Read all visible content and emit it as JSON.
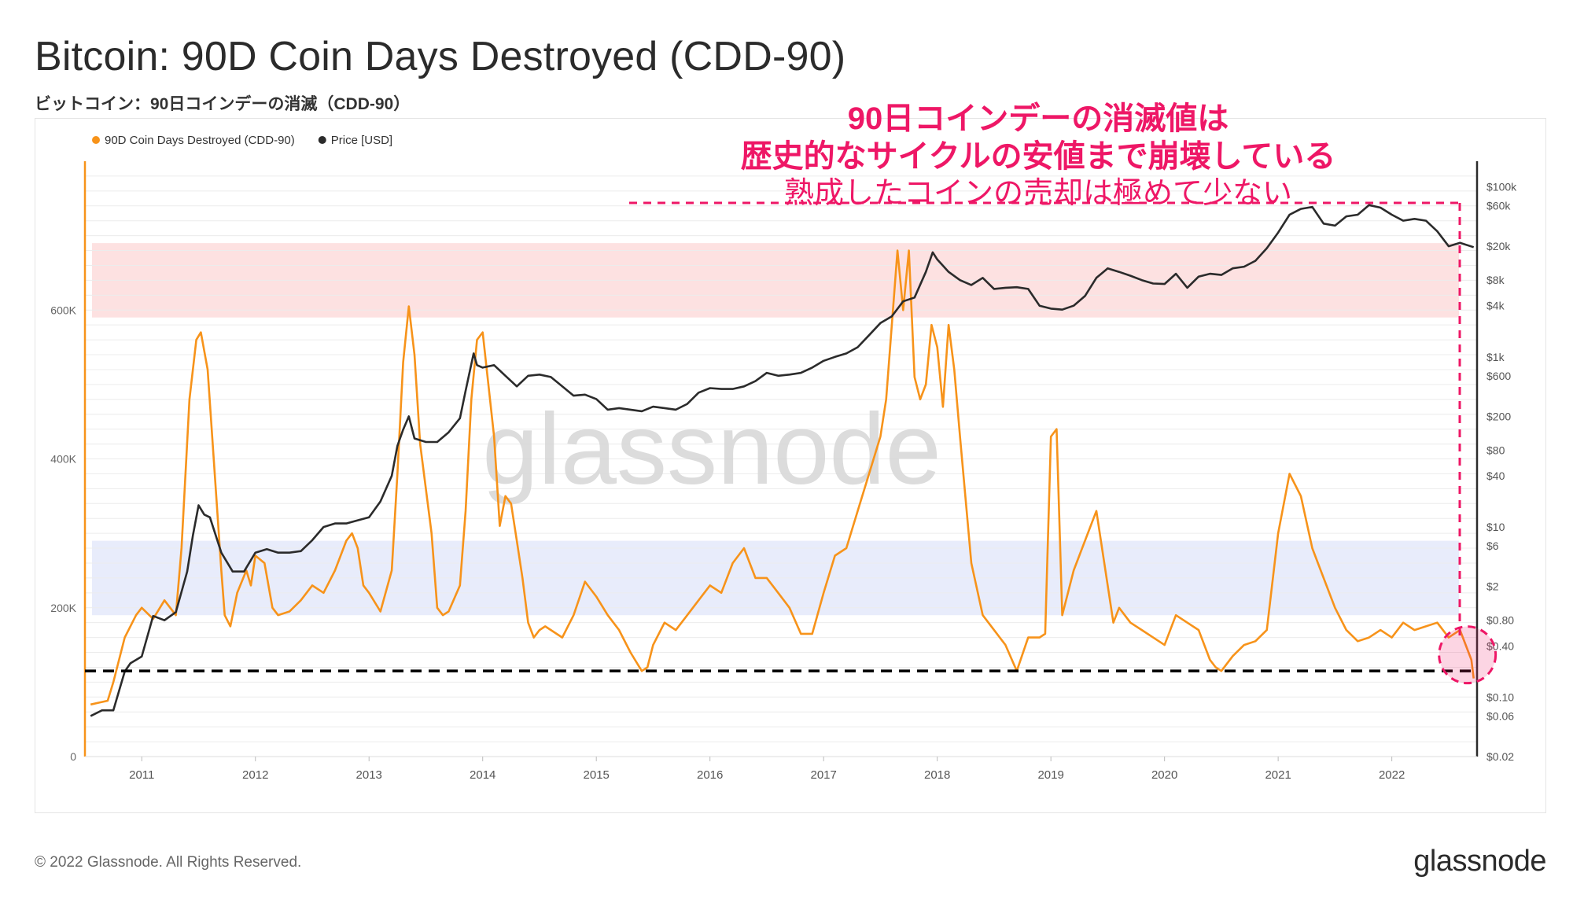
{
  "header": {
    "title": "Bitcoin: 90D Coin Days Destroyed (CDD-90)",
    "subtitle": "ビットコイン：90日コインデーの消滅（CDD-90）"
  },
  "annotation": {
    "line1": "90日コインデーの消滅値は",
    "line2": "歴史的なサイクルの安値まで崩壊している",
    "line3": "熟成したコインの売却は極めて少ない"
  },
  "watermark": "glassnode",
  "footer": {
    "copyright": "© 2022 Glassnode. All Rights Reserved.",
    "brand": "glassnode"
  },
  "chart_data": {
    "type": "line",
    "title": "Bitcoin: 90D Coin Days Destroyed (CDD-90)",
    "legend": [
      {
        "label": "90D Coin Days Destroyed (CDD-90)",
        "color": "#f7931a"
      },
      {
        "label": "Price [USD]",
        "color": "#2b2b2b"
      }
    ],
    "legend_position": "top-left",
    "x_ticks": [
      "2011",
      "2012",
      "2013",
      "2014",
      "2015",
      "2016",
      "2017",
      "2018",
      "2019",
      "2020",
      "2021",
      "2022"
    ],
    "x_range": [
      2010.5,
      2022.75
    ],
    "y_left": {
      "ticks": [
        "0",
        "200K",
        "400K",
        "600K"
      ],
      "range": [
        0,
        800000
      ]
    },
    "y_right": {
      "scale": "log",
      "ticks": [
        "$0.02",
        "$0.06",
        "$0.10",
        "$0.40",
        "$0.80",
        "$2",
        "$6",
        "$10",
        "$40",
        "$80",
        "$200",
        "$600",
        "$1k",
        "$4k",
        "$8k",
        "$20k",
        "$60k",
        "$100k"
      ],
      "range": [
        0.02,
        200000
      ]
    },
    "bands": [
      {
        "name": "high",
        "y_range": [
          590000,
          690000
        ],
        "color": "#fde1e1"
      },
      {
        "name": "low",
        "y_range": [
          190000,
          290000
        ],
        "color": "#e8ecfb"
      }
    ],
    "reference_line": {
      "name": "cycle-low",
      "value": 115000,
      "color": "#000000"
    },
    "series": [
      {
        "name": "90D Coin Days Destroyed (CDD-90)",
        "axis": "left",
        "color": "#f7931a",
        "x": [
          2010.55,
          2010.7,
          2010.75,
          2010.85,
          2010.95,
          2011.0,
          2011.1,
          2011.2,
          2011.3,
          2011.35,
          2011.42,
          2011.48,
          2011.52,
          2011.58,
          2011.62,
          2011.7,
          2011.73,
          2011.78,
          2011.84,
          2011.92,
          2011.96,
          2012.0,
          2012.08,
          2012.15,
          2012.2,
          2012.3,
          2012.4,
          2012.5,
          2012.6,
          2012.7,
          2012.8,
          2012.85,
          2012.9,
          2012.95,
          2013.0,
          2013.1,
          2013.2,
          2013.25,
          2013.3,
          2013.35,
          2013.4,
          2013.45,
          2013.55,
          2013.6,
          2013.65,
          2013.7,
          2013.8,
          2013.85,
          2013.9,
          2013.95,
          2014.0,
          2014.1,
          2014.15,
          2014.2,
          2014.25,
          2014.3,
          2014.35,
          2014.4,
          2014.45,
          2014.5,
          2014.55,
          2014.7,
          2014.8,
          2014.9,
          2015.0,
          2015.1,
          2015.2,
          2015.3,
          2015.4,
          2015.45,
          2015.5,
          2015.6,
          2015.7,
          2015.8,
          2015.9,
          2016.0,
          2016.1,
          2016.2,
          2016.3,
          2016.4,
          2016.5,
          2016.6,
          2016.7,
          2016.8,
          2016.9,
          2017.0,
          2017.1,
          2017.2,
          2017.3,
          2017.4,
          2017.5,
          2017.55,
          2017.6,
          2017.65,
          2017.7,
          2017.75,
          2017.8,
          2017.85,
          2017.9,
          2017.95,
          2018.0,
          2018.05,
          2018.1,
          2018.15,
          2018.2,
          2018.3,
          2018.4,
          2018.5,
          2018.6,
          2018.7,
          2018.8,
          2018.9,
          2018.95,
          2019.0,
          2019.05,
          2019.1,
          2019.2,
          2019.3,
          2019.4,
          2019.5,
          2019.55,
          2019.6,
          2019.7,
          2019.8,
          2019.9,
          2020.0,
          2020.1,
          2020.2,
          2020.3,
          2020.4,
          2020.45,
          2020.5,
          2020.6,
          2020.7,
          2020.8,
          2020.9,
          2021.0,
          2021.1,
          2021.2,
          2021.3,
          2021.35,
          2021.4,
          2021.5,
          2021.6,
          2021.7,
          2021.8,
          2021.9,
          2022.0,
          2022.1,
          2022.2,
          2022.3,
          2022.4,
          2022.5,
          2022.6,
          2022.65,
          2022.7,
          2022.72
        ],
        "y": [
          70000,
          75000,
          100000,
          160000,
          190000,
          200000,
          185000,
          210000,
          190000,
          280000,
          480000,
          560000,
          570000,
          520000,
          430000,
          250000,
          190000,
          175000,
          220000,
          250000,
          230000,
          270000,
          260000,
          200000,
          190000,
          195000,
          210000,
          230000,
          220000,
          250000,
          290000,
          300000,
          280000,
          230000,
          220000,
          195000,
          250000,
          380000,
          530000,
          605000,
          540000,
          420000,
          300000,
          200000,
          190000,
          195000,
          230000,
          330000,
          480000,
          560000,
          570000,
          430000,
          310000,
          350000,
          340000,
          290000,
          240000,
          180000,
          160000,
          170000,
          175000,
          160000,
          190000,
          235000,
          215000,
          190000,
          170000,
          140000,
          115000,
          120000,
          150000,
          180000,
          170000,
          190000,
          210000,
          230000,
          220000,
          260000,
          280000,
          240000,
          240000,
          220000,
          200000,
          165000,
          165000,
          220000,
          270000,
          280000,
          330000,
          380000,
          430000,
          480000,
          580000,
          680000,
          600000,
          680000,
          510000,
          480000,
          500000,
          580000,
          550000,
          470000,
          580000,
          520000,
          430000,
          260000,
          190000,
          170000,
          150000,
          115000,
          160000,
          160000,
          165000,
          430000,
          440000,
          190000,
          250000,
          290000,
          330000,
          230000,
          180000,
          200000,
          180000,
          170000,
          160000,
          150000,
          190000,
          180000,
          170000,
          130000,
          120000,
          115000,
          135000,
          150000,
          155000,
          170000,
          300000,
          380000,
          350000,
          280000,
          260000,
          240000,
          200000,
          170000,
          155000,
          160000,
          170000,
          160000,
          180000,
          170000,
          175000,
          180000,
          160000,
          170000,
          150000,
          130000,
          105000
        ]
      },
      {
        "name": "Price [USD]",
        "axis": "right",
        "color": "#2b2b2b",
        "x": [
          2010.55,
          2010.65,
          2010.75,
          2010.85,
          2010.9,
          2011.0,
          2011.1,
          2011.2,
          2011.3,
          2011.4,
          2011.45,
          2011.5,
          2011.55,
          2011.6,
          2011.7,
          2011.8,
          2011.9,
          2012.0,
          2012.1,
          2012.2,
          2012.3,
          2012.4,
          2012.5,
          2012.6,
          2012.7,
          2012.8,
          2012.9,
          2013.0,
          2013.1,
          2013.2,
          2013.25,
          2013.3,
          2013.35,
          2013.4,
          2013.5,
          2013.6,
          2013.7,
          2013.8,
          2013.85,
          2013.92,
          2013.95,
          2014.0,
          2014.1,
          2014.2,
          2014.3,
          2014.4,
          2014.5,
          2014.6,
          2014.7,
          2014.8,
          2014.9,
          2015.0,
          2015.1,
          2015.2,
          2015.3,
          2015.4,
          2015.5,
          2015.6,
          2015.7,
          2015.8,
          2015.9,
          2016.0,
          2016.1,
          2016.2,
          2016.3,
          2016.4,
          2016.5,
          2016.6,
          2016.7,
          2016.8,
          2016.9,
          2017.0,
          2017.1,
          2017.2,
          2017.3,
          2017.4,
          2017.5,
          2017.6,
          2017.7,
          2017.8,
          2017.9,
          2017.96,
          2018.0,
          2018.1,
          2018.2,
          2018.3,
          2018.4,
          2018.5,
          2018.6,
          2018.7,
          2018.8,
          2018.9,
          2019.0,
          2019.1,
          2019.2,
          2019.3,
          2019.4,
          2019.5,
          2019.6,
          2019.7,
          2019.8,
          2019.9,
          2020.0,
          2020.1,
          2020.2,
          2020.3,
          2020.4,
          2020.5,
          2020.6,
          2020.7,
          2020.8,
          2020.9,
          2021.0,
          2021.1,
          2021.2,
          2021.3,
          2021.4,
          2021.5,
          2021.6,
          2021.7,
          2021.8,
          2021.9,
          2022.0,
          2022.1,
          2022.2,
          2022.3,
          2022.4,
          2022.5,
          2022.6,
          2022.72
        ],
        "y": [
          0.06,
          0.07,
          0.07,
          0.2,
          0.25,
          0.3,
          0.9,
          0.8,
          1.0,
          3,
          8,
          18,
          14,
          13,
          5,
          3,
          3,
          5,
          5.5,
          5,
          5,
          5.2,
          7,
          10,
          11,
          11,
          12,
          13,
          20,
          40,
          90,
          140,
          200,
          110,
          100,
          100,
          130,
          190,
          400,
          1100,
          800,
          750,
          800,
          600,
          450,
          600,
          620,
          580,
          450,
          350,
          360,
          320,
          240,
          250,
          240,
          230,
          260,
          250,
          240,
          280,
          380,
          430,
          420,
          420,
          450,
          520,
          650,
          600,
          620,
          650,
          750,
          900,
          1000,
          1100,
          1300,
          1800,
          2500,
          3000,
          4500,
          5000,
          10000,
          17000,
          14000,
          10000,
          8000,
          7000,
          8500,
          6300,
          6500,
          6600,
          6300,
          4000,
          3700,
          3600,
          4000,
          5200,
          8500,
          11000,
          10000,
          9000,
          8000,
          7300,
          7200,
          9500,
          6500,
          8800,
          9500,
          9200,
          11000,
          11500,
          13500,
          19000,
          29000,
          47000,
          55000,
          58000,
          37000,
          35000,
          45000,
          47000,
          61000,
          57000,
          47000,
          40000,
          42000,
          40000,
          30000,
          20000,
          22000,
          19500
        ]
      }
    ]
  }
}
